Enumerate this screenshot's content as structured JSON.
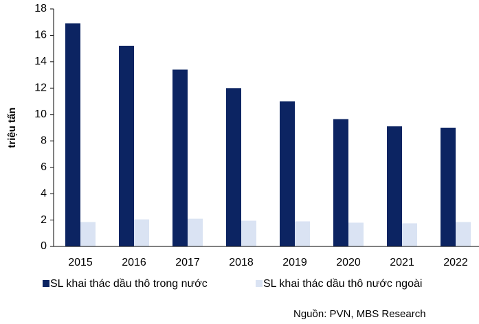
{
  "chart_data": {
    "type": "bar",
    "y_label": "triệu tấn",
    "categories": [
      "2015",
      "2016",
      "2017",
      "2018",
      "2019",
      "2020",
      "2021",
      "2022"
    ],
    "series": [
      {
        "name": "SL khai thác dầu thô trong nước",
        "color": "#0c2462",
        "values": [
          16.9,
          15.2,
          13.4,
          12.0,
          11.0,
          9.65,
          9.1,
          9.0
        ]
      },
      {
        "name": "SL khai thác dầu thô nước ngoài",
        "color": "#dae3f3",
        "values": [
          1.85,
          2.05,
          2.1,
          1.95,
          1.9,
          1.8,
          1.75,
          1.85
        ]
      }
    ],
    "ylim": [
      0,
      18
    ],
    "yticks": [
      0,
      2,
      4,
      6,
      8,
      10,
      12,
      14,
      16,
      18
    ],
    "legend": "bottom",
    "source": "Nguồn: PVN, MBS Research"
  }
}
